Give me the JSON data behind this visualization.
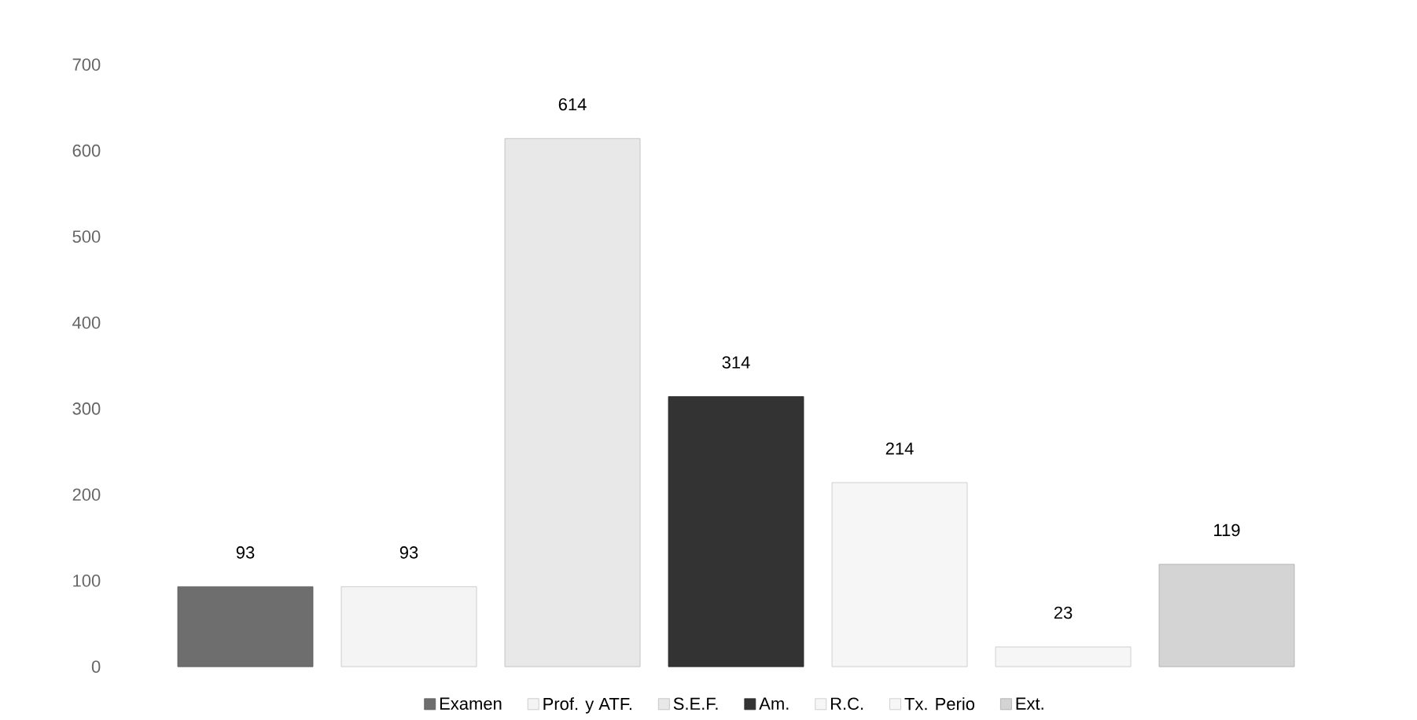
{
  "chart_data": {
    "type": "bar",
    "categories": [
      null
    ],
    "series": [
      {
        "name": "Examen",
        "color": "#6e6e6e",
        "values": [
          93
        ]
      },
      {
        "name": "Prof. y ATF.",
        "color": "#f4f4f4",
        "values": [
          93
        ]
      },
      {
        "name": "S.E.F.",
        "color": "#e8e8e8",
        "values": [
          614
        ]
      },
      {
        "name": "Am.",
        "color": "#333333",
        "values": [
          314
        ]
      },
      {
        "name": "R.C.",
        "color": "#f6f6f6",
        "values": [
          214
        ]
      },
      {
        "name": "Tx. Perio",
        "color": "#f6f6f6",
        "values": [
          23
        ]
      },
      {
        "name": "Ext.",
        "color": "#d4d4d4",
        "values": [
          119
        ]
      }
    ],
    "ylim": [
      0,
      700
    ],
    "yticks": [
      0,
      100,
      200,
      300,
      400,
      500,
      600,
      700
    ],
    "data_labels": true,
    "legend": "bottom",
    "grid": false
  }
}
